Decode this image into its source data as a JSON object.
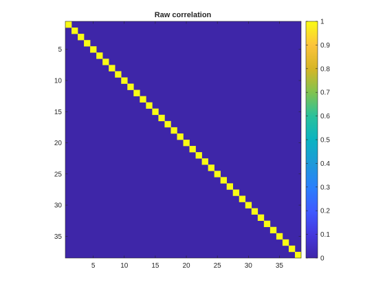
{
  "chart_data": {
    "type": "heatmap",
    "title": "Raw correlation",
    "xlabel": "",
    "ylabel": "",
    "rows": 38,
    "cols": 38,
    "matrix_kind": "identity",
    "diagonal_value": 1,
    "off_diagonal_value": 0,
    "xticks": [
      5,
      10,
      15,
      20,
      25,
      30,
      35
    ],
    "yticks": [
      5,
      10,
      15,
      20,
      25,
      30,
      35
    ],
    "colorbar": {
      "min": 0,
      "max": 1,
      "ticks": [
        0,
        0.1,
        0.2,
        0.3,
        0.4,
        0.5,
        0.6,
        0.7,
        0.8,
        0.9,
        1
      ],
      "colormap": "parula",
      "low_color": "#3e26a8",
      "high_color": "#f9fb15"
    }
  }
}
